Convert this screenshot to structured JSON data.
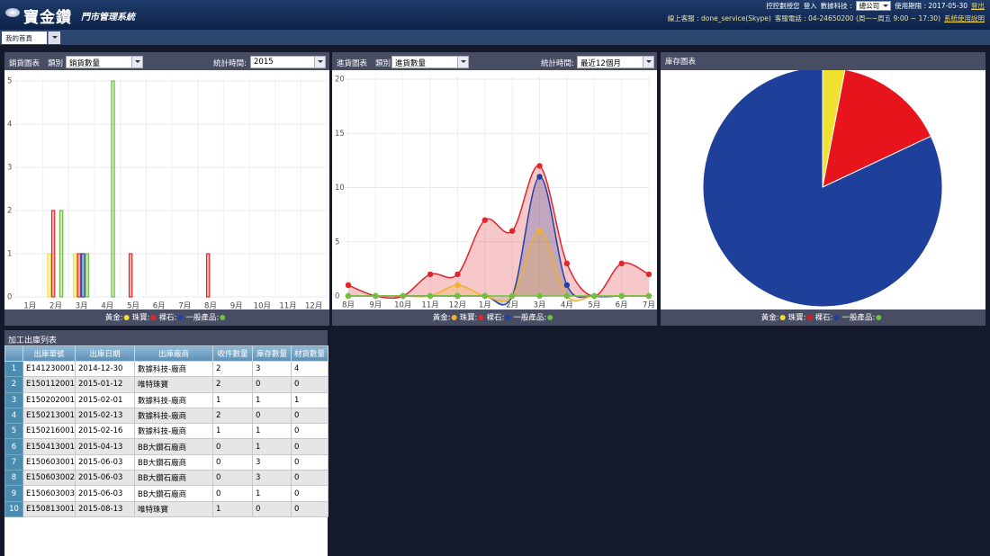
{
  "header": {
    "logo": "寶金鑽",
    "subtitle": "門市管理系統",
    "greeting": "控控劃授您",
    "login_label": "登入",
    "company": "數據科技 :",
    "branch": "總公司",
    "expiry": "使用期限 : 2017-05-30",
    "logout": "登出",
    "support": "線上客服 : done_service(Skype)",
    "phone": "客服電話 : 04-24650200 (周一~周五 9:00 ~ 17:30)",
    "manual": "系統使用說明"
  },
  "tabs": [
    "我的首頁"
  ],
  "filters": [
    {
      "filter_label": "類別",
      "filter_value": "銷貨數量",
      "time_label": "統計時間:",
      "time_value": "2015"
    },
    {
      "filter_label": "類別",
      "filter_value": "進貨數量",
      "time_label": "統計時間:",
      "time_value": "最近12個月"
    }
  ],
  "chart_data": [
    {
      "type": "bar",
      "title": "銷貨圖表",
      "categories": [
        "1月",
        "2月",
        "3月",
        "4月",
        "5月",
        "6月",
        "7月",
        "8月",
        "9月",
        "10月",
        "11月",
        "12月"
      ],
      "series": [
        {
          "name": "黃金:",
          "color": "#f2df3c",
          "values": [
            0,
            1,
            1,
            0,
            0,
            0,
            0,
            0,
            0,
            0,
            0,
            0
          ]
        },
        {
          "name": "珠寶:",
          "color": "#e0252b",
          "values": [
            0,
            2,
            1,
            0,
            1,
            0,
            0,
            1,
            0,
            0,
            0,
            0
          ]
        },
        {
          "name": "裸石:",
          "color": "#2340a0",
          "values": [
            0,
            0,
            1,
            0,
            0,
            0,
            0,
            0,
            0,
            0,
            0,
            0
          ]
        },
        {
          "name": "一般產品:",
          "color": "#70c040",
          "values": [
            0,
            2,
            1,
            5,
            0,
            0,
            0,
            0,
            0,
            0,
            0,
            0
          ]
        }
      ],
      "ylim": [
        0,
        5
      ],
      "yticks": [
        0,
        1,
        2,
        3,
        4,
        5
      ],
      "grid": true
    },
    {
      "type": "line",
      "title": "進貨圖表",
      "categories": [
        "8月",
        "9月",
        "10月",
        "11月",
        "12月",
        "1月",
        "2月",
        "3月",
        "4月",
        "5月",
        "6月",
        "7月"
      ],
      "series": [
        {
          "name": "黃金:",
          "color": "#f0b030",
          "values": [
            0,
            0,
            0,
            0,
            1,
            0,
            0,
            6,
            0,
            0,
            0,
            0
          ]
        },
        {
          "name": "珠寶:",
          "color": "#e0252b",
          "values": [
            1,
            0,
            0,
            2,
            2,
            7,
            6,
            12,
            3,
            0,
            3,
            2
          ]
        },
        {
          "name": "裸石:",
          "color": "#2340a0",
          "values": [
            0,
            0,
            0,
            0,
            0,
            0,
            0,
            11,
            1,
            0,
            0,
            0
          ]
        },
        {
          "name": "一般產品:",
          "color": "#70c040",
          "values": [
            0,
            0,
            0,
            0,
            0,
            0,
            0,
            0,
            0,
            0,
            0,
            0
          ]
        }
      ],
      "ylim": [
        0,
        20
      ],
      "yticks": [
        0,
        5,
        10,
        15,
        20
      ],
      "grid": true
    },
    {
      "type": "pie",
      "title": "庫存圖表",
      "categories": [
        "黃金:",
        "珠寶:",
        "裸石:",
        "一般產品:"
      ],
      "values": [
        3,
        15,
        82,
        0
      ],
      "colors": [
        "#f0e030",
        "#e8141c",
        "#1e3f9a",
        "#70c040"
      ]
    }
  ],
  "table": {
    "title": "加工出庫列表",
    "columns": [
      "出庫單號",
      "出庫日期",
      "出庫廠商",
      "收件數量",
      "庫存數量",
      "材貨數量"
    ],
    "rows": [
      [
        1,
        "E141230001",
        "2014-12-30",
        "數據科技-廠商",
        2,
        3,
        4
      ],
      [
        2,
        "E150112001",
        "2015-01-12",
        "唯特珠寶",
        2,
        0,
        0
      ],
      [
        3,
        "E150202001",
        "2015-02-01",
        "數據科技-廠商",
        1,
        1,
        1
      ],
      [
        4,
        "E150213001",
        "2015-02-13",
        "數據科技-廠商",
        2,
        0,
        0
      ],
      [
        5,
        "E150216001",
        "2015-02-16",
        "數據科技-廠商",
        1,
        1,
        0
      ],
      [
        6,
        "E150413001",
        "2015-04-13",
        "BB大鑽石廠商",
        0,
        1,
        0
      ],
      [
        7,
        "E150603001",
        "2015-06-03",
        "BB大鑽石廠商",
        0,
        3,
        0
      ],
      [
        8,
        "E150603002",
        "2015-06-03",
        "BB大鑽石廠商",
        0,
        3,
        0
      ],
      [
        9,
        "E150603003",
        "2015-06-03",
        "BB大鑽石廠商",
        0,
        1,
        0
      ],
      [
        10,
        "E150813001",
        "2015-08-13",
        "唯特珠寶",
        1,
        0,
        0
      ]
    ]
  }
}
